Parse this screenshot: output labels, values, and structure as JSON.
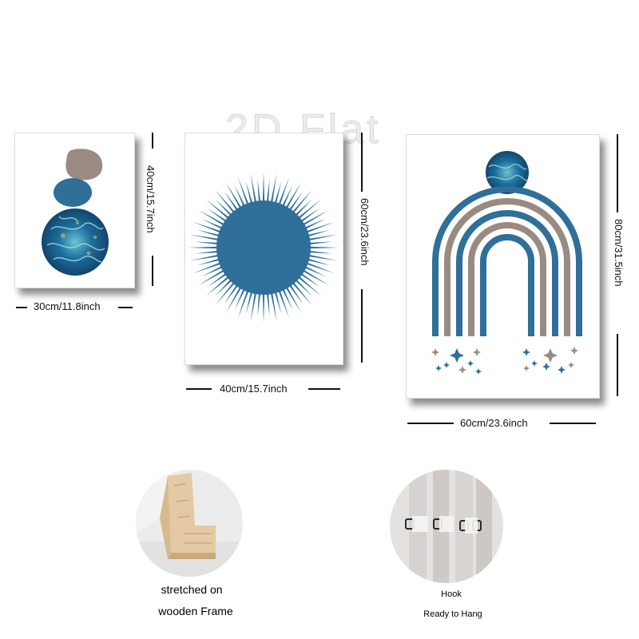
{
  "watermark": "2D Flat",
  "colors": {
    "blue": "#2f6f9a",
    "taupe": "#9a8b82",
    "teal_dark": "#1a4e78"
  },
  "panels": [
    {
      "width_label": "30cm/11.8inch",
      "height_label": "40cm/15.7inch",
      "artwork": "stacked stones with marbled circle"
    },
    {
      "width_label": "40cm/15.7inch",
      "height_label": "60cm/23.6inch",
      "artwork": "blue sunburst"
    },
    {
      "width_label": "60cm/23.6inch",
      "height_label": "80cm/31.5inch",
      "artwork": "rainbow arch with stars and marbled circle"
    }
  ],
  "features": [
    {
      "lines": [
        "stretched on",
        "wooden Frame"
      ],
      "icon": "wooden-frame-corner"
    },
    {
      "lines": [
        "Hook",
        "Ready to Hang"
      ],
      "icon": "hanging-hook"
    }
  ]
}
